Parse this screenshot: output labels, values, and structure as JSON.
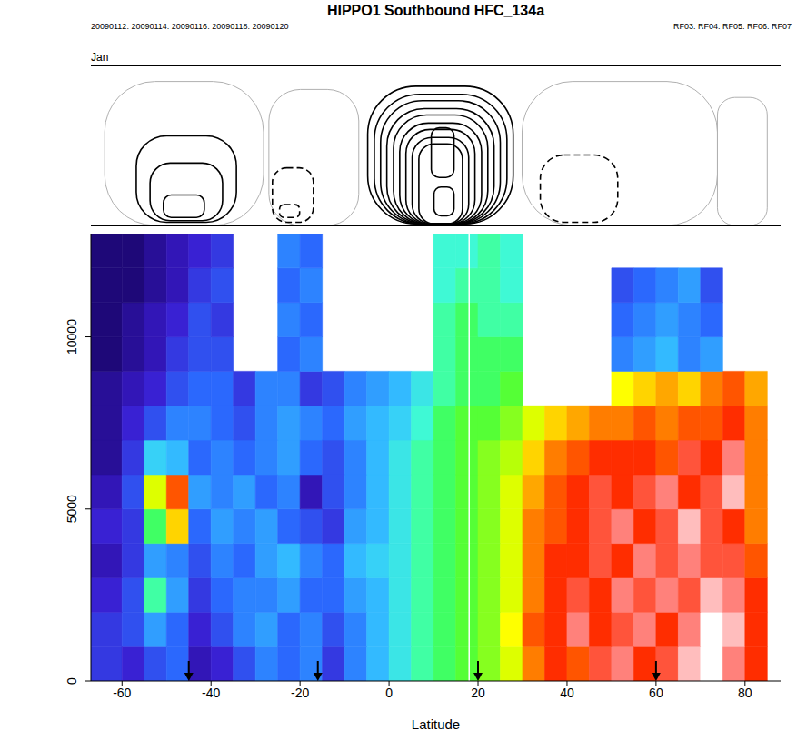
{
  "chart_data": [
    {
      "type": "contour",
      "title": "HIPPO1 Southbound HFC_134a",
      "subtitle": "20090112. 20090114. 20090116. 20090118. 20090120",
      "annotations": [
        "RF03. RF04. RF05. RF06. RF07",
        "Jan"
      ],
      "xlim": [
        -67,
        88
      ],
      "ylim": [
        0,
        1
      ],
      "tick_labels": false,
      "contours": [
        {
          "x": [
            -63.9,
            -28.2
          ],
          "y": [
            0,
            0.9
          ],
          "color": "#b0b0b0",
          "line_style": "solid"
        },
        {
          "x": [
            -27,
            -6.8
          ],
          "y": [
            0,
            0.85
          ],
          "color": "#b0b0b0",
          "line_style": "solid"
        },
        {
          "x": [
            29.9,
            73.8
          ],
          "y": [
            0,
            0.9
          ],
          "color": "#b0b0b0",
          "line_style": "solid"
        },
        {
          "x": [
            73.8,
            85
          ],
          "y": [
            0,
            0.8
          ],
          "color": "#b0b0b0",
          "line_style": "solid"
        },
        {
          "x": [
            -56.8,
            -34.3
          ],
          "y": [
            0.02,
            0.56
          ],
          "color": "#000000",
          "line_style": "solid"
        },
        {
          "x": [
            -53.7,
            -37.4
          ],
          "y": [
            0.03,
            0.39
          ],
          "color": "#000000",
          "line_style": "solid"
        },
        {
          "x": [
            -50.7,
            -41.5
          ],
          "y": [
            0.05,
            0.19
          ],
          "color": "#000000",
          "line_style": "solid"
        },
        {
          "x": [
            -26.2,
            -17
          ],
          "y": [
            0.02,
            0.36
          ],
          "color": "#000000",
          "line_style": "dashed"
        },
        {
          "x": [
            -24.6,
            -20.1
          ],
          "y": [
            0.05,
            0.13
          ],
          "color": "#000000",
          "line_style": "dashed"
        },
        {
          "x": [
            -4.8,
            27.9
          ],
          "y": [
            0.01,
            0.87
          ],
          "color": "#000000",
          "line_style": "solid"
        },
        {
          "x": [
            -3.3,
            26.5
          ],
          "y": [
            0.01,
            0.82
          ],
          "color": "#000000",
          "line_style": "solid"
        },
        {
          "x": [
            -1.9,
            25
          ],
          "y": [
            0.01,
            0.78
          ],
          "color": "#000000",
          "line_style": "solid"
        },
        {
          "x": [
            -0.5,
            23.6
          ],
          "y": [
            0.01,
            0.73
          ],
          "color": "#000000",
          "line_style": "solid"
        },
        {
          "x": [
            1,
            22.2
          ],
          "y": [
            0.01,
            0.69
          ],
          "color": "#000000",
          "line_style": "solid"
        },
        {
          "x": [
            2.4,
            20.8
          ],
          "y": [
            0.01,
            0.64
          ],
          "color": "#000000",
          "line_style": "solid"
        },
        {
          "x": [
            3.8,
            19.3
          ],
          "y": [
            0.01,
            0.6
          ],
          "color": "#000000",
          "line_style": "solid"
        },
        {
          "x": [
            5.2,
            17.9
          ],
          "y": [
            0.01,
            0.55
          ],
          "color": "#000000",
          "line_style": "solid"
        },
        {
          "x": [
            6.7,
            16.5
          ],
          "y": [
            0.01,
            0.51
          ],
          "color": "#000000",
          "line_style": "solid"
        },
        {
          "x": [
            9.5,
            14.6
          ],
          "y": [
            0.3,
            0.61
          ],
          "color": "#000000",
          "line_style": "solid"
        },
        {
          "x": [
            10.1,
            14.6
          ],
          "y": [
            0.06,
            0.24
          ],
          "color": "#000000",
          "line_style": "solid"
        },
        {
          "x": [
            34,
            51.4
          ],
          "y": [
            0.02,
            0.44
          ],
          "color": "#000000",
          "line_style": "dashed"
        }
      ]
    },
    {
      "type": "heatmap",
      "x_label": "Latitude",
      "xlim": [
        -67,
        88
      ],
      "xticks": [
        -60,
        -40,
        -20,
        0,
        20,
        40,
        60,
        80
      ],
      "ylim": [
        0,
        13000
      ],
      "yticks": [
        0,
        5000,
        10000
      ],
      "zlim": [
        44,
        58
      ],
      "arrows": [
        -45,
        -16,
        20,
        60
      ],
      "divider": 18,
      "x_edges": [
        -67,
        -60,
        -55,
        -50,
        -45,
        -40,
        -35,
        -30,
        -25,
        -20,
        -15,
        -10,
        -5,
        0,
        5,
        10,
        15,
        20,
        25,
        30,
        35,
        40,
        45,
        50,
        55,
        60,
        65,
        70,
        75,
        80,
        85
      ],
      "y_edges": [
        0,
        1000,
        2000,
        3000,
        4000,
        5000,
        6000,
        7000,
        8000,
        9000,
        10000,
        11000,
        12000,
        13000
      ],
      "cells": [
        [
          46,
          45.5,
          46.5,
          47,
          45,
          45.5,
          46.5,
          47.5,
          47,
          47.5,
          46,
          47.5,
          48.5,
          49.5,
          50.5,
          51,
          51.5,
          52,
          53,
          55,
          56,
          55.5,
          56.5,
          57,
          56,
          56.5,
          57.5,
          58,
          57,
          56
        ],
        [
          46,
          46.5,
          48,
          47,
          45.5,
          46.5,
          47.5,
          48,
          47,
          47.5,
          46.5,
          47.5,
          48.5,
          49.5,
          50.5,
          51,
          51.5,
          52,
          53.5,
          55.5,
          56,
          57,
          56,
          56.5,
          57,
          56,
          57,
          58,
          57.5,
          56
        ],
        [
          45.5,
          46.5,
          50.5,
          48,
          46,
          47,
          47.5,
          47.5,
          48,
          47,
          47,
          48,
          48.5,
          49.5,
          50.5,
          51,
          51.5,
          52,
          53,
          55,
          56,
          56.5,
          56,
          57,
          56.5,
          57,
          56.5,
          57.5,
          57,
          56
        ],
        [
          45,
          46,
          48,
          47.5,
          46.5,
          47.5,
          47,
          48,
          48.5,
          47.5,
          47,
          48.5,
          49,
          49.5,
          50.5,
          51,
          51.5,
          52,
          53,
          55,
          56,
          56,
          56.5,
          56,
          57,
          56.5,
          57,
          56.5,
          56.5,
          55.5
        ],
        [
          45.5,
          46,
          51,
          54,
          47,
          48,
          47.5,
          48,
          47,
          46.5,
          46,
          48,
          48.5,
          49.5,
          50.5,
          51,
          51.5,
          52,
          53,
          55,
          55.5,
          56,
          56.5,
          57,
          56,
          56.5,
          57.5,
          56.5,
          56,
          55
        ],
        [
          45,
          46.5,
          53,
          55.5,
          48,
          47.5,
          48,
          47,
          47.5,
          45,
          46.5,
          47.5,
          48.5,
          49.5,
          50.5,
          51,
          51.5,
          52,
          53,
          54.5,
          55.5,
          56,
          56.5,
          56,
          56.5,
          57,
          56,
          56.5,
          57.5,
          55
        ],
        [
          44.5,
          46,
          49,
          48.5,
          47,
          47.5,
          47,
          47.5,
          48,
          47,
          46.5,
          47.5,
          48.5,
          49.5,
          50.5,
          51,
          51.5,
          52,
          52.5,
          54,
          55,
          55.5,
          56,
          56,
          56,
          55.5,
          56.5,
          56,
          57,
          55
        ],
        [
          44.5,
          45.5,
          46.5,
          47.5,
          47.5,
          47,
          46.5,
          47.5,
          48,
          47.5,
          47,
          48,
          48.5,
          49,
          50,
          51,
          51.5,
          51.5,
          52,
          53,
          54,
          54.5,
          55,
          55,
          55.5,
          55,
          55.5,
          55.5,
          56,
          55
        ],
        [
          44.5,
          45,
          45.5,
          46.5,
          47,
          47,
          46,
          47.5,
          47.5,
          46,
          46.5,
          47.5,
          48,
          48.5,
          49.5,
          50.5,
          51,
          51,
          51.5,
          null,
          null,
          null,
          null,
          53.5,
          54,
          54.5,
          54,
          55,
          55.5,
          54.5
        ],
        [
          44,
          44.5,
          45,
          46,
          46.5,
          46.5,
          null,
          null,
          47,
          47.5,
          null,
          null,
          null,
          null,
          null,
          50.5,
          51,
          51,
          51,
          null,
          null,
          null,
          null,
          47.5,
          48,
          48.5,
          47.5,
          48,
          null,
          null
        ],
        [
          44,
          44.5,
          45,
          45.5,
          46.5,
          46,
          null,
          null,
          47.5,
          47,
          null,
          null,
          null,
          null,
          null,
          50.5,
          51,
          50.5,
          50.5,
          null,
          null,
          null,
          null,
          47,
          47.5,
          48,
          47.5,
          47,
          null,
          null
        ],
        [
          44,
          44,
          44.5,
          45,
          46,
          46.5,
          null,
          null,
          47,
          47.5,
          null,
          null,
          null,
          null,
          null,
          50,
          50.5,
          50.5,
          50,
          null,
          null,
          null,
          null,
          46.5,
          47,
          47.5,
          48,
          46.5,
          null,
          null
        ],
        [
          44,
          44,
          44.5,
          45,
          45.5,
          46,
          null,
          null,
          47.5,
          47,
          null,
          null,
          null,
          null,
          null,
          50,
          50,
          50.5,
          50,
          null,
          null,
          null,
          null,
          null,
          null,
          null,
          null,
          null,
          null,
          null
        ]
      ]
    }
  ]
}
